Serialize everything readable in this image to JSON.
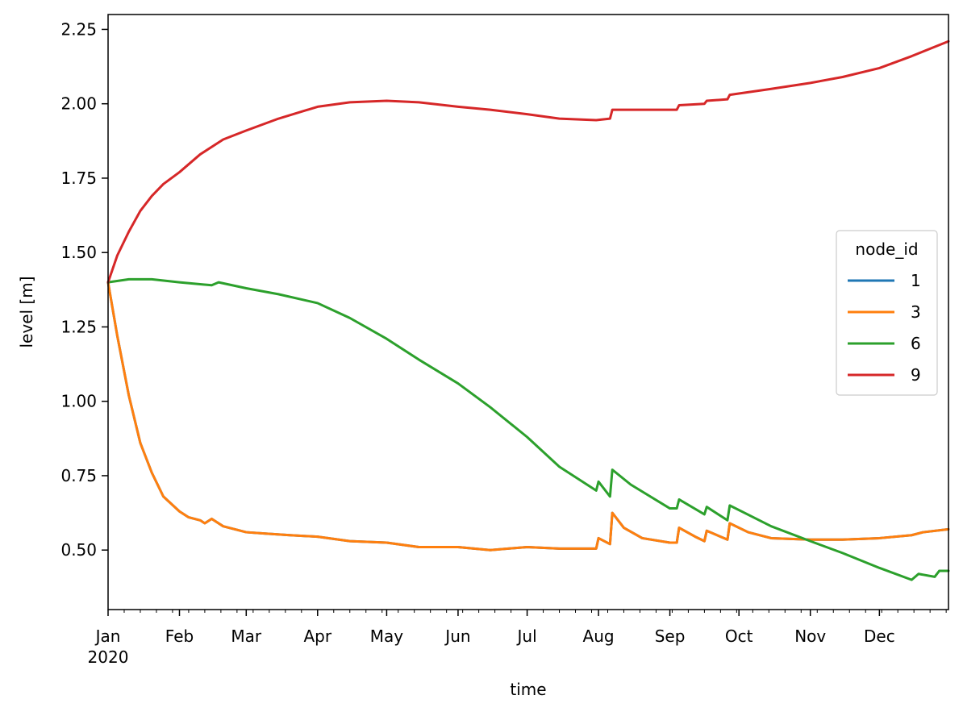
{
  "chart_data": {
    "type": "line",
    "title": "",
    "xlabel": "time",
    "ylabel": "level [m]",
    "xlim": [
      "2020-01-01",
      "2020-12-31"
    ],
    "ylim": [
      0.3,
      2.3
    ],
    "grid": false,
    "legend": {
      "title": "node_id",
      "placement": "center-right"
    },
    "x_ticks": [
      {
        "date": "2020-01-01",
        "label": "Jan",
        "sublabel": "2020"
      },
      {
        "date": "2020-02-01",
        "label": "Feb"
      },
      {
        "date": "2020-03-01",
        "label": "Mar"
      },
      {
        "date": "2020-04-01",
        "label": "Apr"
      },
      {
        "date": "2020-05-01",
        "label": "May"
      },
      {
        "date": "2020-06-01",
        "label": "Jun"
      },
      {
        "date": "2020-07-01",
        "label": "Jul"
      },
      {
        "date": "2020-08-01",
        "label": "Aug"
      },
      {
        "date": "2020-09-01",
        "label": "Sep"
      },
      {
        "date": "2020-10-01",
        "label": "Oct"
      },
      {
        "date": "2020-11-01",
        "label": "Nov"
      },
      {
        "date": "2020-12-01",
        "label": "Dec"
      }
    ],
    "y_ticks": [
      {
        "value": 0.5,
        "label": "0.50"
      },
      {
        "value": 0.75,
        "label": "0.75"
      },
      {
        "value": 1.0,
        "label": "1.00"
      },
      {
        "value": 1.25,
        "label": "1.25"
      },
      {
        "value": 1.5,
        "label": "1.50"
      },
      {
        "value": 1.75,
        "label": "1.75"
      },
      {
        "value": 2.0,
        "label": "2.00"
      },
      {
        "value": 2.25,
        "label": "2.25"
      }
    ],
    "series": [
      {
        "name": "1",
        "color": "#1f77b4",
        "points": [
          [
            "2020-01-01",
            1.4
          ],
          [
            "2020-01-05",
            1.22
          ],
          [
            "2020-01-10",
            1.02
          ],
          [
            "2020-01-15",
            0.86
          ],
          [
            "2020-01-20",
            0.76
          ],
          [
            "2020-01-25",
            0.68
          ],
          [
            "2020-02-01",
            0.63
          ],
          [
            "2020-02-05",
            0.61
          ],
          [
            "2020-02-10",
            0.6
          ],
          [
            "2020-02-12",
            0.59
          ],
          [
            "2020-02-15",
            0.605
          ],
          [
            "2020-02-20",
            0.58
          ],
          [
            "2020-03-01",
            0.56
          ],
          [
            "2020-03-10",
            0.555
          ],
          [
            "2020-03-20",
            0.55
          ],
          [
            "2020-04-01",
            0.545
          ],
          [
            "2020-04-15",
            0.53
          ],
          [
            "2020-05-01",
            0.525
          ],
          [
            "2020-05-15",
            0.51
          ],
          [
            "2020-06-01",
            0.51
          ],
          [
            "2020-06-15",
            0.5
          ],
          [
            "2020-07-01",
            0.51
          ],
          [
            "2020-07-15",
            0.505
          ],
          [
            "2020-07-31",
            0.505
          ],
          [
            "2020-08-01",
            0.54
          ],
          [
            "2020-08-06",
            0.52
          ],
          [
            "2020-08-07",
            0.625
          ],
          [
            "2020-08-12",
            0.575
          ],
          [
            "2020-08-20",
            0.54
          ],
          [
            "2020-09-01",
            0.525
          ],
          [
            "2020-09-04",
            0.525
          ],
          [
            "2020-09-05",
            0.575
          ],
          [
            "2020-09-12",
            0.545
          ],
          [
            "2020-09-16",
            0.53
          ],
          [
            "2020-09-17",
            0.565
          ],
          [
            "2020-09-26",
            0.535
          ],
          [
            "2020-09-27",
            0.59
          ],
          [
            "2020-10-05",
            0.56
          ],
          [
            "2020-10-15",
            0.54
          ],
          [
            "2020-11-01",
            0.535
          ],
          [
            "2020-11-15",
            0.535
          ],
          [
            "2020-12-01",
            0.54
          ],
          [
            "2020-12-15",
            0.55
          ],
          [
            "2020-12-20",
            0.56
          ],
          [
            "2020-12-31",
            0.57
          ]
        ]
      },
      {
        "name": "3",
        "color": "#ff7f0e",
        "points": [
          [
            "2020-01-01",
            1.4
          ],
          [
            "2020-01-05",
            1.22
          ],
          [
            "2020-01-10",
            1.02
          ],
          [
            "2020-01-15",
            0.86
          ],
          [
            "2020-01-20",
            0.76
          ],
          [
            "2020-01-25",
            0.68
          ],
          [
            "2020-02-01",
            0.63
          ],
          [
            "2020-02-05",
            0.61
          ],
          [
            "2020-02-10",
            0.6
          ],
          [
            "2020-02-12",
            0.59
          ],
          [
            "2020-02-15",
            0.605
          ],
          [
            "2020-02-20",
            0.58
          ],
          [
            "2020-03-01",
            0.56
          ],
          [
            "2020-03-10",
            0.555
          ],
          [
            "2020-03-20",
            0.55
          ],
          [
            "2020-04-01",
            0.545
          ],
          [
            "2020-04-15",
            0.53
          ],
          [
            "2020-05-01",
            0.525
          ],
          [
            "2020-05-15",
            0.51
          ],
          [
            "2020-06-01",
            0.51
          ],
          [
            "2020-06-15",
            0.5
          ],
          [
            "2020-07-01",
            0.51
          ],
          [
            "2020-07-15",
            0.505
          ],
          [
            "2020-07-31",
            0.505
          ],
          [
            "2020-08-01",
            0.54
          ],
          [
            "2020-08-06",
            0.52
          ],
          [
            "2020-08-07",
            0.625
          ],
          [
            "2020-08-12",
            0.575
          ],
          [
            "2020-08-20",
            0.54
          ],
          [
            "2020-09-01",
            0.525
          ],
          [
            "2020-09-04",
            0.525
          ],
          [
            "2020-09-05",
            0.575
          ],
          [
            "2020-09-12",
            0.545
          ],
          [
            "2020-09-16",
            0.53
          ],
          [
            "2020-09-17",
            0.565
          ],
          [
            "2020-09-26",
            0.535
          ],
          [
            "2020-09-27",
            0.59
          ],
          [
            "2020-10-05",
            0.56
          ],
          [
            "2020-10-15",
            0.54
          ],
          [
            "2020-11-01",
            0.535
          ],
          [
            "2020-11-15",
            0.535
          ],
          [
            "2020-12-01",
            0.54
          ],
          [
            "2020-12-15",
            0.55
          ],
          [
            "2020-12-20",
            0.56
          ],
          [
            "2020-12-31",
            0.57
          ]
        ]
      },
      {
        "name": "6",
        "color": "#2ca02c",
        "points": [
          [
            "2020-01-01",
            1.4
          ],
          [
            "2020-01-10",
            1.41
          ],
          [
            "2020-01-20",
            1.41
          ],
          [
            "2020-02-01",
            1.4
          ],
          [
            "2020-02-15",
            1.39
          ],
          [
            "2020-02-18",
            1.4
          ],
          [
            "2020-03-01",
            1.38
          ],
          [
            "2020-03-15",
            1.36
          ],
          [
            "2020-04-01",
            1.33
          ],
          [
            "2020-04-15",
            1.28
          ],
          [
            "2020-05-01",
            1.21
          ],
          [
            "2020-05-15",
            1.14
          ],
          [
            "2020-06-01",
            1.06
          ],
          [
            "2020-06-15",
            0.98
          ],
          [
            "2020-07-01",
            0.88
          ],
          [
            "2020-07-15",
            0.78
          ],
          [
            "2020-07-31",
            0.7
          ],
          [
            "2020-08-01",
            0.73
          ],
          [
            "2020-08-06",
            0.68
          ],
          [
            "2020-08-07",
            0.77
          ],
          [
            "2020-08-15",
            0.72
          ],
          [
            "2020-09-01",
            0.64
          ],
          [
            "2020-09-04",
            0.64
          ],
          [
            "2020-09-05",
            0.67
          ],
          [
            "2020-09-16",
            0.62
          ],
          [
            "2020-09-17",
            0.645
          ],
          [
            "2020-09-26",
            0.6
          ],
          [
            "2020-09-27",
            0.65
          ],
          [
            "2020-10-15",
            0.58
          ],
          [
            "2020-11-01",
            0.53
          ],
          [
            "2020-11-15",
            0.49
          ],
          [
            "2020-12-01",
            0.44
          ],
          [
            "2020-12-15",
            0.4
          ],
          [
            "2020-12-18",
            0.42
          ],
          [
            "2020-12-25",
            0.41
          ],
          [
            "2020-12-27",
            0.43
          ],
          [
            "2020-12-31",
            0.43
          ]
        ]
      },
      {
        "name": "9",
        "color": "#d62728",
        "points": [
          [
            "2020-01-01",
            1.4
          ],
          [
            "2020-01-05",
            1.49
          ],
          [
            "2020-01-10",
            1.57
          ],
          [
            "2020-01-15",
            1.64
          ],
          [
            "2020-01-20",
            1.69
          ],
          [
            "2020-01-25",
            1.73
          ],
          [
            "2020-02-01",
            1.77
          ],
          [
            "2020-02-10",
            1.83
          ],
          [
            "2020-02-20",
            1.88
          ],
          [
            "2020-03-01",
            1.91
          ],
          [
            "2020-03-15",
            1.95
          ],
          [
            "2020-04-01",
            1.99
          ],
          [
            "2020-04-15",
            2.005
          ],
          [
            "2020-05-01",
            2.01
          ],
          [
            "2020-05-15",
            2.005
          ],
          [
            "2020-06-01",
            1.99
          ],
          [
            "2020-06-15",
            1.98
          ],
          [
            "2020-07-01",
            1.965
          ],
          [
            "2020-07-15",
            1.95
          ],
          [
            "2020-07-31",
            1.945
          ],
          [
            "2020-08-06",
            1.95
          ],
          [
            "2020-08-07",
            1.98
          ],
          [
            "2020-09-01",
            1.98
          ],
          [
            "2020-09-04",
            1.98
          ],
          [
            "2020-09-05",
            1.995
          ],
          [
            "2020-09-16",
            2.0
          ],
          [
            "2020-09-17",
            2.01
          ],
          [
            "2020-09-26",
            2.015
          ],
          [
            "2020-09-27",
            2.03
          ],
          [
            "2020-10-15",
            2.05
          ],
          [
            "2020-11-01",
            2.07
          ],
          [
            "2020-11-15",
            2.09
          ],
          [
            "2020-12-01",
            2.12
          ],
          [
            "2020-12-15",
            2.16
          ],
          [
            "2020-12-31",
            2.21
          ]
        ]
      }
    ]
  }
}
